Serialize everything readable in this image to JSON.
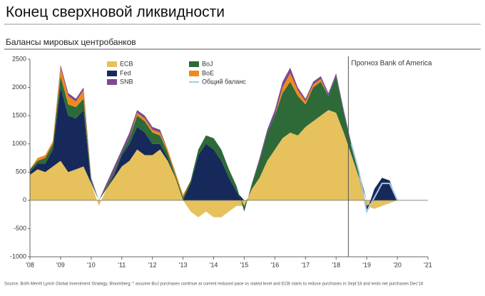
{
  "chart_data": {
    "type": "stacked_area",
    "title": "Конец сверхновой ликвидности",
    "subtitle": "Балансы мировых центробанков",
    "annotation": {
      "text": "Прогноз Bank of America",
      "x": 2018.4
    },
    "source": "Source: BofA Merrill Lynch Global Investment Strategy, Bloomberg; * assume BoJ purchases continue at current reduced pace vs stated level and ECB starts to reduce purchases in Sept'18 and ends net purchases Dec'18",
    "x": [
      2008,
      2008.25,
      2008.5,
      2008.75,
      2009,
      2009.25,
      2009.5,
      2009.75,
      2010,
      2010.25,
      2010.5,
      2010.75,
      2011,
      2011.25,
      2011.5,
      2011.75,
      2012,
      2012.25,
      2012.5,
      2012.75,
      2013,
      2013.25,
      2013.5,
      2013.75,
      2014,
      2014.25,
      2014.5,
      2014.75,
      2015,
      2015.25,
      2015.5,
      2015.75,
      2016,
      2016.25,
      2016.5,
      2016.75,
      2017,
      2017.25,
      2017.5,
      2017.75,
      2018,
      2018.25,
      2018.5,
      2018.75,
      2019,
      2019.25,
      2019.5,
      2019.75,
      2020
    ],
    "series": [
      {
        "name": "ECB",
        "color": "#e6c15c",
        "values": [
          450,
          550,
          500,
          600,
          700,
          500,
          550,
          600,
          300,
          -100,
          200,
          400,
          600,
          700,
          900,
          800,
          800,
          900,
          700,
          400,
          0,
          -200,
          -300,
          -200,
          -300,
          -300,
          -200,
          -100,
          -100,
          200,
          400,
          700,
          900,
          1100,
          1200,
          1150,
          1300,
          1400,
          1500,
          1600,
          1550,
          1200,
          800,
          400,
          -100,
          -150,
          -100,
          -50,
          0
        ]
      },
      {
        "name": "Fed",
        "color": "#16295a",
        "values": [
          50,
          100,
          150,
          300,
          1300,
          1000,
          900,
          1000,
          0,
          0,
          0,
          50,
          200,
          300,
          400,
          400,
          200,
          100,
          50,
          0,
          0,
          300,
          800,
          1000,
          900,
          700,
          400,
          150,
          0,
          0,
          0,
          0,
          0,
          0,
          0,
          0,
          0,
          0,
          0,
          0,
          0,
          0,
          0,
          0,
          -100,
          200,
          400,
          350,
          0
        ]
      },
      {
        "name": "BoJ",
        "color": "#2d6a38",
        "values": [
          50,
          50,
          100,
          100,
          200,
          200,
          200,
          200,
          50,
          0,
          50,
          50,
          50,
          100,
          200,
          200,
          200,
          150,
          100,
          50,
          50,
          50,
          100,
          150,
          200,
          200,
          150,
          100,
          -100,
          100,
          300,
          500,
          600,
          800,
          900,
          700,
          400,
          600,
          600,
          250,
          650,
          350,
          200,
          100,
          0,
          0,
          0,
          0,
          0
        ]
      },
      {
        "name": "BoE",
        "color": "#f0891c",
        "values": [
          0,
          50,
          50,
          50,
          150,
          150,
          100,
          150,
          0,
          0,
          0,
          0,
          0,
          0,
          50,
          50,
          50,
          50,
          50,
          50,
          50,
          0,
          0,
          0,
          0,
          0,
          0,
          0,
          0,
          0,
          0,
          0,
          0,
          100,
          150,
          100,
          50,
          50,
          50,
          0,
          0,
          0,
          0,
          0,
          0,
          0,
          0,
          0,
          0
        ]
      },
      {
        "name": "SNB",
        "color": "#7a4a8e",
        "values": [
          0,
          0,
          0,
          0,
          50,
          50,
          50,
          50,
          50,
          0,
          50,
          100,
          50,
          100,
          50,
          50,
          50,
          50,
          0,
          0,
          0,
          0,
          0,
          0,
          0,
          0,
          0,
          0,
          0,
          0,
          50,
          50,
          100,
          100,
          100,
          50,
          50,
          50,
          50,
          50,
          50,
          50,
          0,
          0,
          0,
          0,
          0,
          0,
          0
        ]
      },
      {
        "name": "Общий баланс",
        "color": "#a9c9dd",
        "line": true,
        "values": [
          null,
          null,
          null,
          null,
          null,
          null,
          null,
          null,
          null,
          null,
          null,
          null,
          null,
          null,
          null,
          null,
          null,
          null,
          null,
          null,
          null,
          null,
          null,
          null,
          null,
          null,
          null,
          null,
          null,
          null,
          null,
          null,
          null,
          null,
          null,
          null,
          null,
          null,
          null,
          null,
          null,
          null,
          1000,
          500,
          -200,
          50,
          300,
          300,
          0
        ]
      }
    ],
    "xlim": [
      2008,
      2021
    ],
    "xticks": [
      {
        "value": 2008,
        "label": "'08"
      },
      {
        "value": 2009,
        "label": "'09"
      },
      {
        "value": 2010,
        "label": "'10"
      },
      {
        "value": 2011,
        "label": "'11"
      },
      {
        "value": 2012,
        "label": "'12"
      },
      {
        "value": 2013,
        "label": "'13"
      },
      {
        "value": 2014,
        "label": "'14"
      },
      {
        "value": 2015,
        "label": "'15"
      },
      {
        "value": 2016,
        "label": "'16"
      },
      {
        "value": 2017,
        "label": "'17"
      },
      {
        "value": 2018,
        "label": "'18"
      },
      {
        "value": 2019,
        "label": "'19"
      },
      {
        "value": 2020,
        "label": "'20"
      },
      {
        "value": 2021,
        "label": "'21"
      }
    ],
    "ylim": [
      -1000,
      2500
    ],
    "yticks": [
      -1000,
      -500,
      0,
      500,
      1000,
      1500,
      2000,
      2500
    ]
  }
}
